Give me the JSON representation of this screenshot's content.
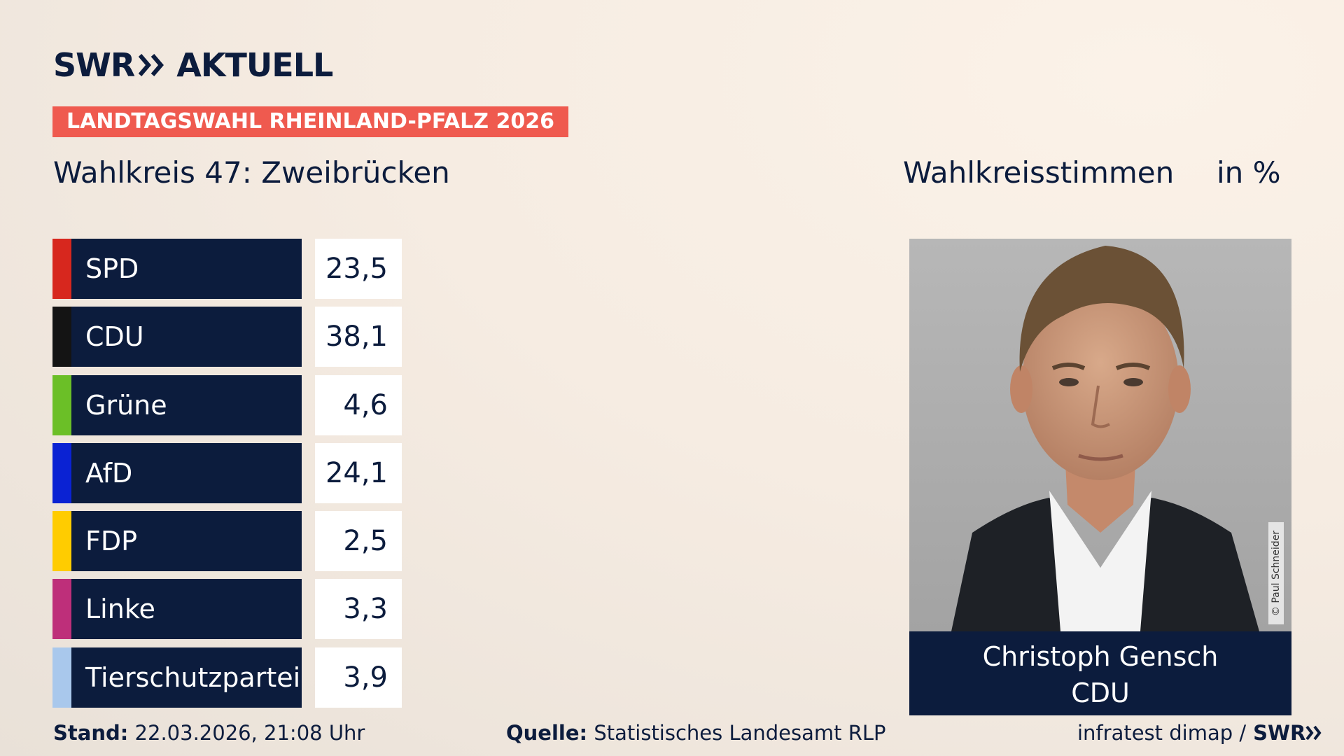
{
  "brand": {
    "logo_left": "SWR",
    "logo_right": "AKTUELL"
  },
  "election_tag": "LANDTAGSWAHL RHEINLAND-PFALZ 2026",
  "wahlkreis_title": "Wahlkreis 47: Zweibrücken",
  "metric_label": "Wahlkreisstimmen",
  "metric_unit": "in %",
  "chart_data": {
    "type": "table",
    "title": "Wahlkreis 47: Zweibrücken",
    "xlabel": "",
    "ylabel": "Wahlkreisstimmen in %",
    "categories": [
      "SPD",
      "CDU",
      "Grüne",
      "AfD",
      "FDP",
      "Linke",
      "Tierschutzpartei"
    ],
    "values": [
      "23,5",
      "38,1",
      "4,6",
      "24,1",
      "2,5",
      "3,3",
      "3,9"
    ],
    "colors": [
      "#d7271e",
      "#141414",
      "#6bbf27",
      "#0a22d3",
      "#ffcc00",
      "#be2f7a",
      "#a9c8ec"
    ]
  },
  "candidate": {
    "name": "Christoph Gensch",
    "party": "CDU",
    "photo_credit": "© Paul Schneider"
  },
  "footer": {
    "stand_label": "Stand:",
    "stand_value": "22.03.2026, 21:08 Uhr",
    "quelle_label": "Quelle:",
    "quelle_value": "Statistisches Landesamt RLP",
    "credit_text": "infratest dimap /",
    "credit_brand": "SWR"
  },
  "colors": {
    "navy": "#0c1c3d",
    "tag_red": "#ef5a4f"
  },
  "icons": {
    "chevron": "double-chevron-icon",
    "portrait": "candidate-portrait"
  }
}
